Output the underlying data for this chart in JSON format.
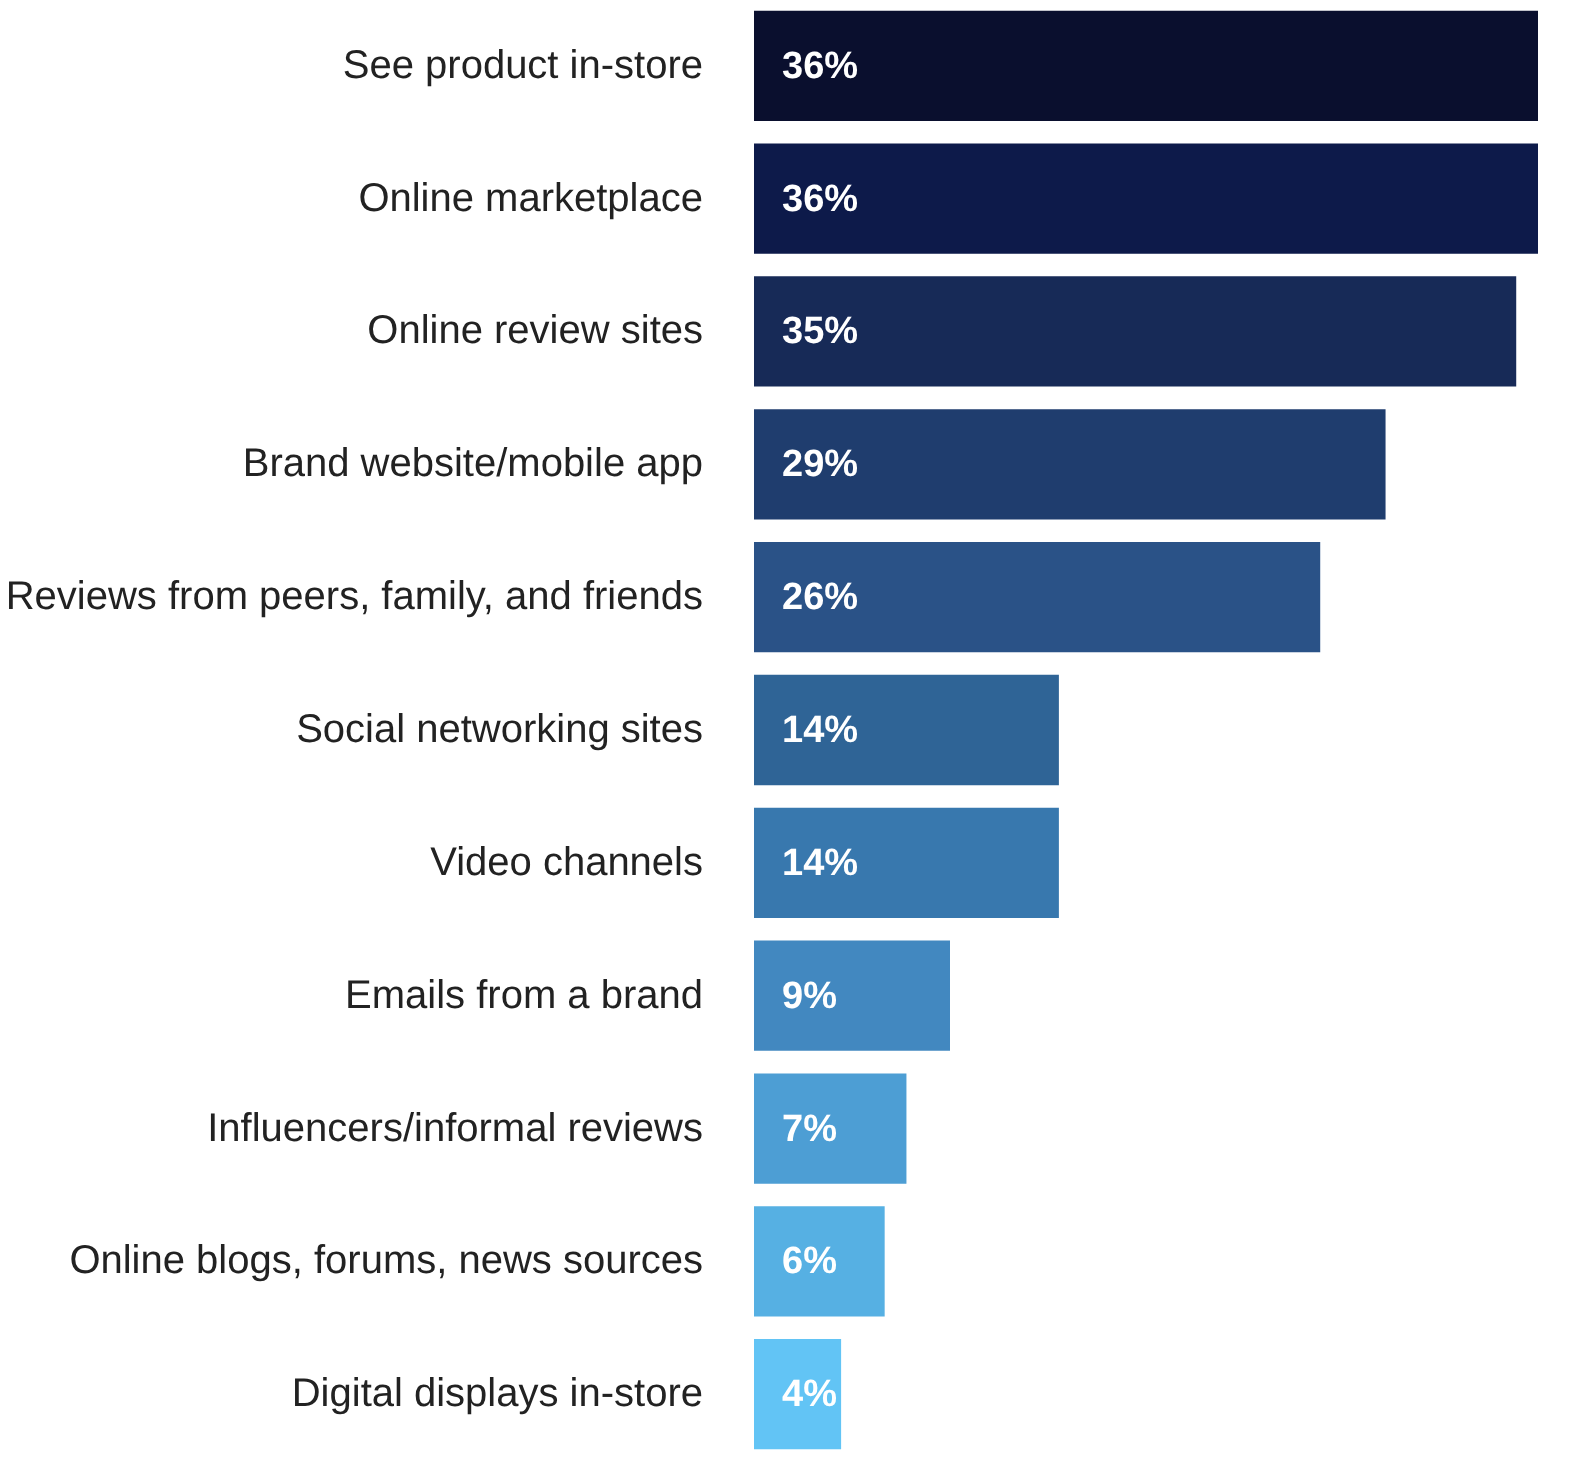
{
  "chart_data": {
    "type": "bar",
    "orientation": "horizontal",
    "categories": [
      "See product in-store",
      "Online marketplace",
      "Online review sites",
      "Brand website/mobile app",
      "Reviews from peers, family, and friends",
      "Social networking sites",
      "Video channels",
      "Emails from a brand",
      "Influencers/informal reviews",
      "Online blogs, forums, news sources",
      "Digital displays in-store"
    ],
    "values": [
      36,
      36,
      35,
      29,
      26,
      14,
      14,
      9,
      7,
      6,
      4
    ],
    "colors": [
      "#0a0f2e",
      "#0d1a4a",
      "#172a57",
      "#1f3d6e",
      "#2a5287",
      "#2f6496",
      "#3878ae",
      "#4288c0",
      "#4d9ed4",
      "#56b0e3",
      "#62c4f5"
    ],
    "value_labels": [
      "36%",
      "36%",
      "35%",
      "29%",
      "26%",
      "14%",
      "14%",
      "9%",
      "7%",
      "6%",
      "4%"
    ],
    "grid": false
  }
}
